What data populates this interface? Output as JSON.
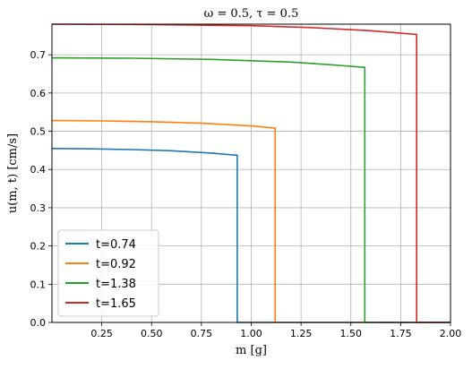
{
  "chart_data": {
    "type": "line",
    "title": "ω = 0.5,  τ = 0.5",
    "xlabel": "m [g]",
    "ylabel": "u(m, t)  [cm/s]",
    "xlim": [
      0.0,
      2.0
    ],
    "ylim": [
      0.0,
      0.78
    ],
    "xticks": [
      0.25,
      0.5,
      0.75,
      1.0,
      1.25,
      1.5,
      1.75,
      2.0
    ],
    "xtick_labels": [
      "0.25",
      "0.50",
      "0.75",
      "1.00",
      "1.25",
      "1.50",
      "1.75",
      "2.00"
    ],
    "yticks": [
      0.0,
      0.1,
      0.2,
      0.3,
      0.4,
      0.5,
      0.6,
      0.7
    ],
    "ytick_labels": [
      "0.0",
      "0.1",
      "0.2",
      "0.3",
      "0.4",
      "0.5",
      "0.6",
      "0.7"
    ],
    "grid": true,
    "legend_position": "lower-left",
    "series": [
      {
        "name": "t=0.74",
        "color": "#1f77b4",
        "x": [
          0.0,
          0.2,
          0.4,
          0.6,
          0.8,
          0.93,
          0.93,
          2.0
        ],
        "y": [
          0.455,
          0.454,
          0.452,
          0.449,
          0.443,
          0.437,
          0.0,
          0.0
        ]
      },
      {
        "name": "t=0.92",
        "color": "#ff7f0e",
        "x": [
          0.0,
          0.25,
          0.5,
          0.75,
          1.0,
          1.12,
          1.12,
          2.0
        ],
        "y": [
          0.528,
          0.527,
          0.525,
          0.521,
          0.514,
          0.508,
          0.0,
          0.0
        ]
      },
      {
        "name": "t=1.38",
        "color": "#2ca02c",
        "x": [
          0.0,
          0.4,
          0.8,
          1.2,
          1.4,
          1.57,
          1.57,
          2.0
        ],
        "y": [
          0.692,
          0.691,
          0.688,
          0.681,
          0.674,
          0.667,
          0.0,
          0.0
        ]
      },
      {
        "name": "t=1.65",
        "color": "#d62728",
        "x": [
          0.0,
          0.5,
          1.0,
          1.3,
          1.6,
          1.83,
          1.83,
          2.0
        ],
        "y": [
          0.78,
          0.779,
          0.776,
          0.771,
          0.763,
          0.753,
          0.0,
          0.0
        ]
      }
    ]
  }
}
